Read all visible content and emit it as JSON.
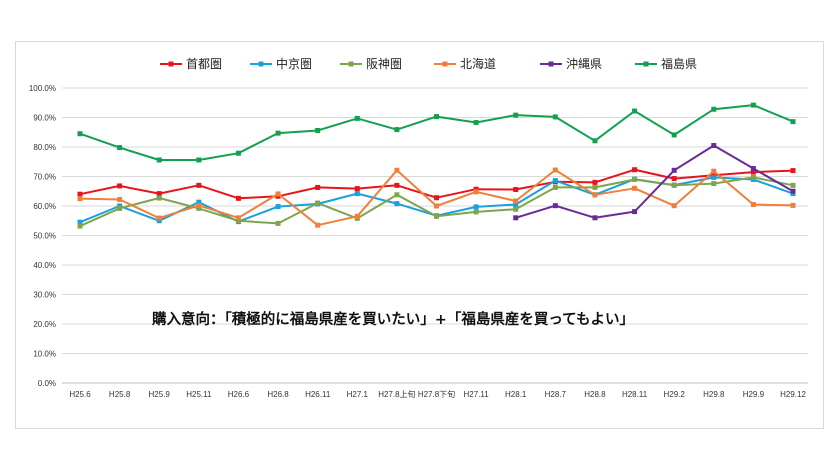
{
  "chart_data": {
    "type": "line",
    "title": "",
    "xlabel": "",
    "ylabel": "",
    "ylim": [
      0,
      100
    ],
    "y_tick_step": 10,
    "y_tick_labels": [
      "0.0%",
      "10.0%",
      "20.0%",
      "30.0%",
      "40.0%",
      "50.0%",
      "60.0%",
      "70.0%",
      "80.0%",
      "90.0%",
      "100.0%"
    ],
    "grid": true,
    "legend_position": "top",
    "categories": [
      "H25.6",
      "H25.8",
      "H25.9",
      "H25.11",
      "H26.6",
      "H26.8",
      "H26.11",
      "H27.1",
      "H27.8上旬",
      "H27.8下旬",
      "H27.11",
      "H28.1",
      "H28.7",
      "H28.8",
      "H28.11",
      "H29.2",
      "H29.8",
      "H29.9",
      "H29.12"
    ],
    "annotation": "購入意向：「積極的に福島県産を買いたい」+「福島県産を買ってもよい」",
    "series": [
      {
        "name": "首都圏",
        "color": "#e8141b",
        "values": [
          64.0,
          66.8,
          64.2,
          67.0,
          62.6,
          63.3,
          66.3,
          65.9,
          67.0,
          62.8,
          65.7,
          65.6,
          68.2,
          68.0,
          72.3,
          69.3,
          70.4,
          71.5,
          72.0
        ]
      },
      {
        "name": "中京圏",
        "color": "#1aa0db",
        "values": [
          54.5,
          60.0,
          55.0,
          61.3,
          54.7,
          59.8,
          60.7,
          64.2,
          60.8,
          56.7,
          59.7,
          60.5,
          68.6,
          63.8,
          69.1,
          67.1,
          69.7,
          69.0,
          64.2
        ]
      },
      {
        "name": "阪神圏",
        "color": "#7ea54d",
        "values": [
          53.2,
          59.2,
          62.7,
          59.2,
          55.0,
          54.1,
          61.0,
          55.8,
          63.8,
          56.5,
          58.0,
          58.9,
          66.3,
          66.3,
          69.0,
          67.0,
          67.6,
          69.7,
          67.0
        ]
      },
      {
        "name": "北海道",
        "color": "#f07f3b",
        "values": [
          62.5,
          62.2,
          55.9,
          60.2,
          56.0,
          64.1,
          53.5,
          56.5,
          72.1,
          60.0,
          64.8,
          61.7,
          72.2,
          63.8,
          66.0,
          60.1,
          71.8,
          60.5,
          60.2
        ]
      },
      {
        "name": "沖縄県",
        "color": "#6a2a96",
        "values": [
          null,
          null,
          null,
          null,
          null,
          null,
          null,
          null,
          null,
          null,
          null,
          56.0,
          60.1,
          56.0,
          58.1,
          72.1,
          80.5,
          72.7,
          65.0
        ]
      },
      {
        "name": "福島県",
        "color": "#13a050",
        "values": [
          84.5,
          79.8,
          75.6,
          75.6,
          77.9,
          84.7,
          85.6,
          89.7,
          85.9,
          90.3,
          88.3,
          90.8,
          90.2,
          82.1,
          92.2,
          84.1,
          92.8,
          94.2,
          88.6
        ]
      }
    ]
  }
}
